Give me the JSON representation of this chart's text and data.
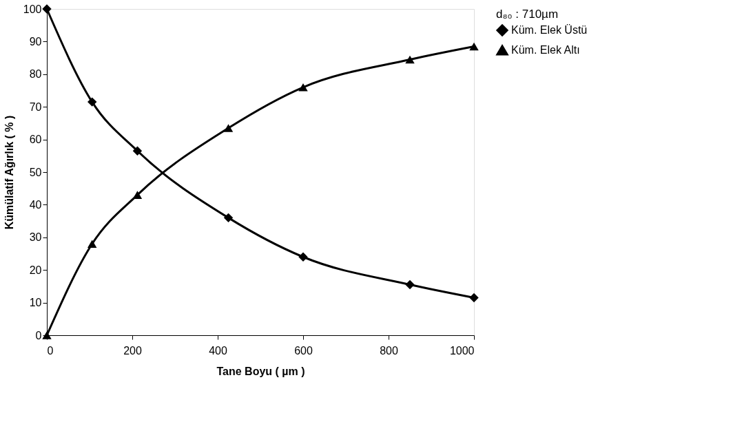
{
  "chart_data": {
    "type": "line",
    "xlabel": "Tane Boyu ( µm )",
    "ylabel": "Kümülatif Ağırlık ( % )",
    "legend_title": "d₈₀ : 710µm",
    "legend": "right",
    "grid": false,
    "line_style": "solid",
    "x": [
      0,
      106,
      212,
      425,
      600,
      850,
      1000
    ],
    "xlim": [
      0,
      1000
    ],
    "xticks": [
      0,
      200,
      400,
      600,
      800,
      1000
    ],
    "ylim": [
      0,
      100
    ],
    "yticks": [
      0,
      10,
      20,
      30,
      40,
      50,
      60,
      70,
      80,
      90,
      100
    ],
    "series": [
      {
        "name": "Küm. Elek Üstü",
        "color": "#000000",
        "marker": "diamond",
        "values": [
          100,
          71.5,
          56.5,
          36,
          24,
          15.5,
          11.5
        ]
      },
      {
        "name": "Küm. Elek Altı",
        "color": "#000000",
        "marker": "triangle",
        "values": [
          0,
          28,
          43,
          63.5,
          76,
          84.5,
          88.5
        ]
      }
    ]
  }
}
